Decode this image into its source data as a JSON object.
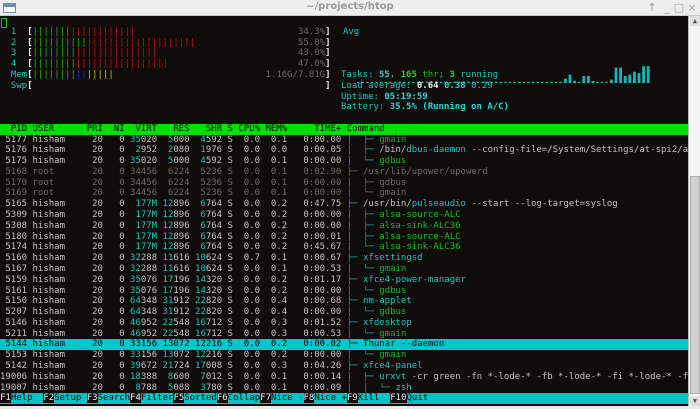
{
  "window": {
    "title": "~/projects/htop",
    "buttons": [
      "↑",
      "_",
      "□",
      "×"
    ]
  },
  "colors": {
    "bar_normal": "#10c010",
    "bar_kernel": "#c81010",
    "mem_used": "#10c010",
    "mem_buffers": "#1030d0",
    "mem_cache": "#c8c800",
    "header_bg": "#00e000",
    "selected_bg": "#00c8c8",
    "cyan": "#10c8c8"
  },
  "meters": [
    {
      "label": "1",
      "value": "34.3%",
      "segments": [
        {
          "color": "#10c010",
          "pct": 13
        },
        {
          "color": "#c81010",
          "pct": 21.3
        }
      ]
    },
    {
      "label": "2",
      "value": "55.0%",
      "segments": [
        {
          "color": "#10c010",
          "pct": 18.5
        },
        {
          "color": "#c81010",
          "pct": 36.5
        }
      ]
    },
    {
      "label": "3",
      "value": "43.0%",
      "segments": [
        {
          "color": "#10c010",
          "pct": 14.8
        },
        {
          "color": "#c81010",
          "pct": 28.2
        }
      ]
    },
    {
      "label": "4",
      "value": "47.0%",
      "segments": [
        {
          "color": "#10c010",
          "pct": 14.8
        },
        {
          "color": "#c81010",
          "pct": 32.2
        }
      ]
    },
    {
      "label": "Mem",
      "value": "1.16G/7.81G",
      "segments": [
        {
          "color": "#10c010",
          "pct": 14.8
        },
        {
          "color": "#1030d0",
          "pct": 3.7
        },
        {
          "color": "#c8c800",
          "pct": 9.3
        }
      ]
    },
    {
      "label": "Swp",
      "value": "0K/0K",
      "segments": []
    }
  ],
  "avg": {
    "label": "Avg",
    "history": [
      0,
      0,
      0,
      0,
      0,
      0,
      0,
      0,
      0,
      0,
      0,
      0,
      0,
      0,
      0,
      0,
      0,
      0,
      0,
      0,
      0,
      0,
      0,
      0,
      0,
      0,
      0,
      0,
      0,
      0,
      0,
      0,
      0,
      0,
      0,
      0,
      0,
      0,
      0,
      0,
      0,
      0,
      0,
      0,
      0,
      15,
      30,
      8,
      0,
      25,
      25,
      5,
      0,
      0,
      0,
      12,
      25,
      25,
      25,
      25,
      25,
      25,
      25,
      25
    ],
    "recent_peaks": [
      0,
      0,
      0,
      0,
      0,
      0,
      0,
      0,
      0,
      0,
      0,
      0,
      0,
      0,
      0,
      0,
      0,
      0,
      0,
      0,
      0,
      0,
      0,
      0,
      0,
      0,
      0,
      0,
      0,
      0,
      0,
      0,
      0,
      0,
      0,
      0,
      0,
      0,
      0,
      0,
      0,
      0,
      0,
      0,
      0,
      0,
      0,
      0,
      0,
      0,
      0,
      0,
      0,
      0,
      0,
      0,
      55,
      55,
      0,
      30,
      40,
      35,
      60,
      60
    ]
  },
  "tasks": {
    "prefix": "Tasks: ",
    "count": "55",
    "sep": ", ",
    "threads": "165",
    "thr_label": " thr",
    "sep2": "; ",
    "running": "3",
    "running_label": " running"
  },
  "load": {
    "label": "Load average: ",
    "one": "0.64",
    "five": "0.38",
    "fifteen": "0.29"
  },
  "uptime": {
    "label": "Uptime: ",
    "value": "05:19:59"
  },
  "battery": {
    "label": "Battery: ",
    "value": "35.5% (Running on A/C)"
  },
  "columns": {
    "pid": "PID",
    "user": "USER",
    "pri": "PRI",
    "ni": "NI",
    "virt": "VIRT",
    "res": "RES",
    "shr": "SHR",
    "s": "S",
    "cpu": "CPU%",
    "mem": "MEM%",
    "time": "TIME+",
    "command": "Command"
  },
  "processes": [
    {
      "pid": "5177",
      "user": "hisham",
      "pri": "20",
      "ni": "0",
      "virt": "35020",
      "res": "5000",
      "shr": "4592",
      "s": "S",
      "cpu": "0.0",
      "mem": "0.1",
      "time": "0:00.00",
      "tree": "│  ├─ ",
      "kind": "thread",
      "path": "",
      "base": "gmain",
      "args": ""
    },
    {
      "pid": "5176",
      "user": "hisham",
      "pri": "20",
      "ni": "0",
      "virt": "2952",
      "res": "2080",
      "shr": "1976",
      "s": "S",
      "cpu": "0.0",
      "mem": "0.0",
      "time": "0:00.05",
      "tree": "│  ├─ ",
      "kind": "proc",
      "path": "/bin/",
      "base": "dbus-daemon",
      "args": " --config-file=/System/Settings/at-spi2/ac"
    },
    {
      "pid": "5175",
      "user": "hisham",
      "pri": "20",
      "ni": "0",
      "virt": "35020",
      "res": "5000",
      "shr": "4592",
      "s": "S",
      "cpu": "0.0",
      "mem": "0.1",
      "time": "0:00.00",
      "tree": "│  └─ ",
      "kind": "thread",
      "path": "",
      "base": "gdbus",
      "args": ""
    },
    {
      "pid": "5168",
      "user": "root",
      "pri": "20",
      "ni": "0",
      "virt": "34456",
      "res": "6224",
      "shr": "5236",
      "s": "S",
      "cpu": "0.0",
      "mem": "0.1",
      "time": "0:02.90",
      "tree": "├─ ",
      "kind": "dim",
      "path": "/usr/lib/upower/",
      "base": "upowerd",
      "args": ""
    },
    {
      "pid": "5170",
      "user": "root",
      "pri": "20",
      "ni": "0",
      "virt": "34456",
      "res": "6224",
      "shr": "5236",
      "s": "S",
      "cpu": "0.0",
      "mem": "0.1",
      "time": "0:00.00",
      "tree": "│  ├─ ",
      "kind": "dim",
      "path": "",
      "base": "gdbus",
      "args": ""
    },
    {
      "pid": "5169",
      "user": "root",
      "pri": "20",
      "ni": "0",
      "virt": "34456",
      "res": "6224",
      "shr": "5236",
      "s": "S",
      "cpu": "0.0",
      "mem": "0.1",
      "time": "0:00.00",
      "tree": "│  └─ ",
      "kind": "dim",
      "path": "",
      "base": "gmain",
      "args": ""
    },
    {
      "pid": "5165",
      "user": "hisham",
      "pri": "20",
      "ni": "0",
      "virt": "177M",
      "res": "12896",
      "shr": "6764",
      "s": "S",
      "cpu": "0.0",
      "mem": "0.2",
      "time": "0:47.75",
      "tree": "├─ ",
      "kind": "proc",
      "path": "/usr/bin/",
      "base": "pulseaudio",
      "args": " --start --log-target=syslog"
    },
    {
      "pid": "5309",
      "user": "hisham",
      "pri": "20",
      "ni": "0",
      "virt": "177M",
      "res": "12896",
      "shr": "6764",
      "s": "S",
      "cpu": "0.0",
      "mem": "0.2",
      "time": "0:00.00",
      "tree": "│  ├─ ",
      "kind": "thread",
      "path": "",
      "base": "alsa-source-ALC",
      "args": ""
    },
    {
      "pid": "5308",
      "user": "hisham",
      "pri": "20",
      "ni": "0",
      "virt": "177M",
      "res": "12896",
      "shr": "6764",
      "s": "S",
      "cpu": "0.0",
      "mem": "0.2",
      "time": "0:00.00",
      "tree": "│  ├─ ",
      "kind": "thread",
      "path": "",
      "base": "alsa-sink-ALC36",
      "args": ""
    },
    {
      "pid": "5180",
      "user": "hisham",
      "pri": "20",
      "ni": "0",
      "virt": "177M",
      "res": "12896",
      "shr": "6764",
      "s": "S",
      "cpu": "0.0",
      "mem": "0.2",
      "time": "0:00.01",
      "tree": "│  ├─ ",
      "kind": "thread",
      "path": "",
      "base": "alsa-source-ALC",
      "args": ""
    },
    {
      "pid": "5174",
      "user": "hisham",
      "pri": "20",
      "ni": "0",
      "virt": "177M",
      "res": "12896",
      "shr": "6764",
      "s": "S",
      "cpu": "0.0",
      "mem": "0.2",
      "time": "0:45.67",
      "tree": "│  └─ ",
      "kind": "thread",
      "path": "",
      "base": "alsa-sink-ALC36",
      "args": ""
    },
    {
      "pid": "5160",
      "user": "hisham",
      "pri": "20",
      "ni": "0",
      "virt": "32288",
      "res": "11616",
      "shr": "10624",
      "s": "S",
      "cpu": "0.7",
      "mem": "0.1",
      "time": "0:00.67",
      "tree": "├─ ",
      "kind": "proc",
      "path": "",
      "base": "xfsettingsd",
      "args": ""
    },
    {
      "pid": "5167",
      "user": "hisham",
      "pri": "20",
      "ni": "0",
      "virt": "32288",
      "res": "11616",
      "shr": "10624",
      "s": "S",
      "cpu": "0.0",
      "mem": "0.1",
      "time": "0:00.53",
      "tree": "│  └─ ",
      "kind": "thread",
      "path": "",
      "base": "gmain",
      "args": ""
    },
    {
      "pid": "5159",
      "user": "hisham",
      "pri": "20",
      "ni": "0",
      "virt": "35076",
      "res": "17196",
      "shr": "14320",
      "s": "S",
      "cpu": "0.0",
      "mem": "0.2",
      "time": "0:01.17",
      "tree": "├─ ",
      "kind": "proc",
      "path": "",
      "base": "xfce4-power-manager",
      "args": ""
    },
    {
      "pid": "5161",
      "user": "hisham",
      "pri": "20",
      "ni": "0",
      "virt": "35076",
      "res": "17196",
      "shr": "14320",
      "s": "S",
      "cpu": "0.0",
      "mem": "0.2",
      "time": "0:00.00",
      "tree": "│  └─ ",
      "kind": "thread",
      "path": "",
      "base": "gdbus",
      "args": ""
    },
    {
      "pid": "5150",
      "user": "hisham",
      "pri": "20",
      "ni": "0",
      "virt": "64348",
      "res": "31912",
      "shr": "22820",
      "s": "S",
      "cpu": "0.0",
      "mem": "0.4",
      "time": "0:00.68",
      "tree": "├─ ",
      "kind": "proc",
      "path": "",
      "base": "nm-applet",
      "args": ""
    },
    {
      "pid": "5207",
      "user": "hisham",
      "pri": "20",
      "ni": "0",
      "virt": "64348",
      "res": "31912",
      "shr": "22820",
      "s": "S",
      "cpu": "0.0",
      "mem": "0.4",
      "time": "0:00.00",
      "tree": "│  └─ ",
      "kind": "thread",
      "path": "",
      "base": "gdbus",
      "args": ""
    },
    {
      "pid": "5146",
      "user": "hisham",
      "pri": "20",
      "ni": "0",
      "virt": "46952",
      "res": "22548",
      "shr": "16712",
      "s": "S",
      "cpu": "0.0",
      "mem": "0.3",
      "time": "0:01.52",
      "tree": "├─ ",
      "kind": "proc",
      "path": "",
      "base": "xfdesktop",
      "args": ""
    },
    {
      "pid": "5211",
      "user": "hisham",
      "pri": "20",
      "ni": "0",
      "virt": "46952",
      "res": "22548",
      "shr": "16712",
      "s": "S",
      "cpu": "0.0",
      "mem": "0.3",
      "time": "0:00.53",
      "tree": "│  └─ ",
      "kind": "thread",
      "path": "",
      "base": "gmain",
      "args": ""
    },
    {
      "pid": "5144",
      "user": "hisham",
      "pri": "20",
      "ni": "0",
      "virt": "33156",
      "res": "13072",
      "shr": "12216",
      "s": "S",
      "cpu": "0.0",
      "mem": "0.2",
      "time": "0:00.02",
      "tree": "├─ ",
      "kind": "proc",
      "path": "",
      "base": "Thunar",
      "args": " --daemon",
      "selected": true
    },
    {
      "pid": "5153",
      "user": "hisham",
      "pri": "20",
      "ni": "0",
      "virt": "33156",
      "res": "13072",
      "shr": "12216",
      "s": "S",
      "cpu": "0.0",
      "mem": "0.2",
      "time": "0:00.00",
      "tree": "│  └─ ",
      "kind": "thread",
      "path": "",
      "base": "gmain",
      "args": ""
    },
    {
      "pid": "5142",
      "user": "hisham",
      "pri": "20",
      "ni": "0",
      "virt": "39672",
      "res": "21724",
      "shr": "17008",
      "s": "S",
      "cpu": "0.0",
      "mem": "0.3",
      "time": "0:04.26",
      "tree": "├─ ",
      "kind": "proc",
      "path": "",
      "base": "xfce4-panel",
      "args": ""
    },
    {
      "pid": "19006",
      "user": "hisham",
      "pri": "20",
      "ni": "0",
      "virt": "18388",
      "res": "8600",
      "shr": "7012",
      "s": "S",
      "cpu": "0.0",
      "mem": "0.1",
      "time": "0:00.14",
      "tree": "│  ├─ ",
      "kind": "proc",
      "path": "",
      "base": "urxvt",
      "args": " -cr green -fn *-lode-* -fb *-lode-* -fi *-lode-* -fb"
    },
    {
      "pid": "19007",
      "user": "hisham",
      "pri": "20",
      "ni": "0",
      "virt": "8788",
      "res": "5088",
      "shr": "3780",
      "s": "S",
      "cpu": "0.0",
      "mem": "0.1",
      "time": "0:00.09",
      "tree": "│  │  └─ ",
      "kind": "proc",
      "path": "",
      "base": "zsh",
      "args": ""
    }
  ],
  "function_bar": [
    {
      "key": "F1",
      "label": "Help  "
    },
    {
      "key": "F2",
      "label": "Setup "
    },
    {
      "key": "F3",
      "label": "Search"
    },
    {
      "key": "F4",
      "label": "Filter"
    },
    {
      "key": "F5",
      "label": "Sorted"
    },
    {
      "key": "F6",
      "label": "Collap"
    },
    {
      "key": "F7",
      "label": "Nice -"
    },
    {
      "key": "F8",
      "label": "Nice +"
    },
    {
      "key": "F9",
      "label": "Kill  "
    },
    {
      "key": "F10",
      "label": "Quit  "
    }
  ]
}
